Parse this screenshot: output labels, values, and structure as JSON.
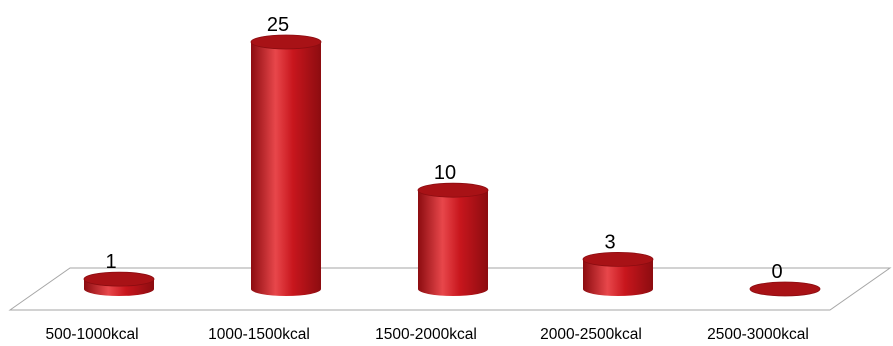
{
  "chart_data": {
    "type": "bar",
    "categories": [
      "500-1000kcal",
      "1000-1500kcal",
      "1500-2000kcal",
      "2000-2500kcal",
      "2500-3000kcal"
    ],
    "values": [
      1,
      25,
      10,
      3,
      0
    ],
    "data_labels": [
      "1",
      "25",
      "10",
      "3",
      "0"
    ],
    "ylim": [
      0,
      25
    ],
    "grid": false,
    "legend": "none",
    "style": "3d-cylinder",
    "colors": {
      "bar": "#c8161d",
      "bar_dark": "#8c0c10",
      "bar_light": "#e8474b",
      "top": "#a81216",
      "floor_stroke": "#a6a6a6"
    }
  }
}
